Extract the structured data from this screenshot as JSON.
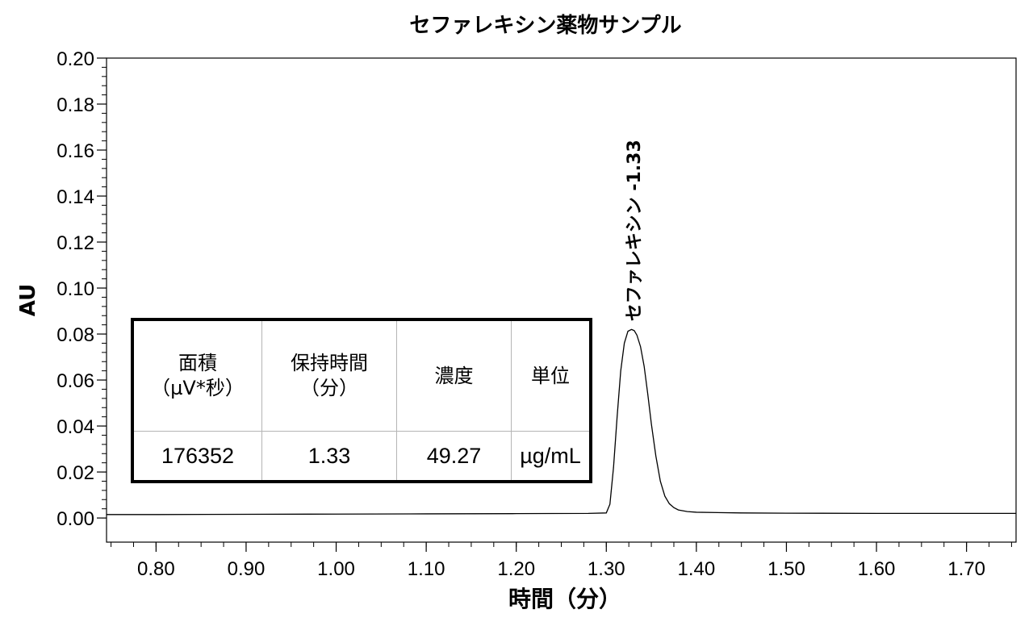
{
  "chart_data": {
    "type": "line",
    "title": "セファレキシン薬物サンプル",
    "xlabel": "時間（分）",
    "ylabel": "AU",
    "xlim": [
      0.745,
      1.755
    ],
    "ylim": [
      -0.0105,
      0.2
    ],
    "x_ticks": [
      "0.80",
      "0.90",
      "1.00",
      "1.10",
      "1.20",
      "1.30",
      "1.40",
      "1.50",
      "1.60",
      "1.70"
    ],
    "y_ticks": [
      "0.00",
      "0.02",
      "0.04",
      "0.06",
      "0.08",
      "0.10",
      "0.12",
      "0.14",
      "0.16",
      "0.18",
      "0.20"
    ],
    "grid": false,
    "series": [
      {
        "x": [
          0.745,
          0.8,
          0.9,
          1.0,
          1.1,
          1.2,
          1.28,
          1.3,
          1.304,
          1.308,
          1.312,
          1.316,
          1.32,
          1.324,
          1.328,
          1.331,
          1.334,
          1.338,
          1.342,
          1.346,
          1.35,
          1.355,
          1.36,
          1.365,
          1.37,
          1.375,
          1.38,
          1.39,
          1.4,
          1.45,
          1.5,
          1.6,
          1.7,
          1.755
        ],
        "y": [
          0.0015,
          0.0015,
          0.0016,
          0.0017,
          0.0018,
          0.0019,
          0.002,
          0.0022,
          0.006,
          0.022,
          0.044,
          0.064,
          0.076,
          0.0812,
          0.082,
          0.0815,
          0.0795,
          0.0745,
          0.066,
          0.054,
          0.041,
          0.027,
          0.016,
          0.0095,
          0.0062,
          0.0045,
          0.0035,
          0.0028,
          0.0025,
          0.0022,
          0.0021,
          0.002,
          0.002,
          0.002
        ]
      }
    ],
    "annotations": [
      {
        "text": "セファレキシン -1.33",
        "x": 1.33,
        "y": 0.082
      }
    ]
  },
  "results_table": {
    "headers": [
      "面積\n（µV*秒）",
      "保持時間\n（分）",
      "濃度",
      "単位"
    ],
    "row": [
      "176352",
      "1.33",
      "49.27",
      "µg/mL"
    ]
  }
}
